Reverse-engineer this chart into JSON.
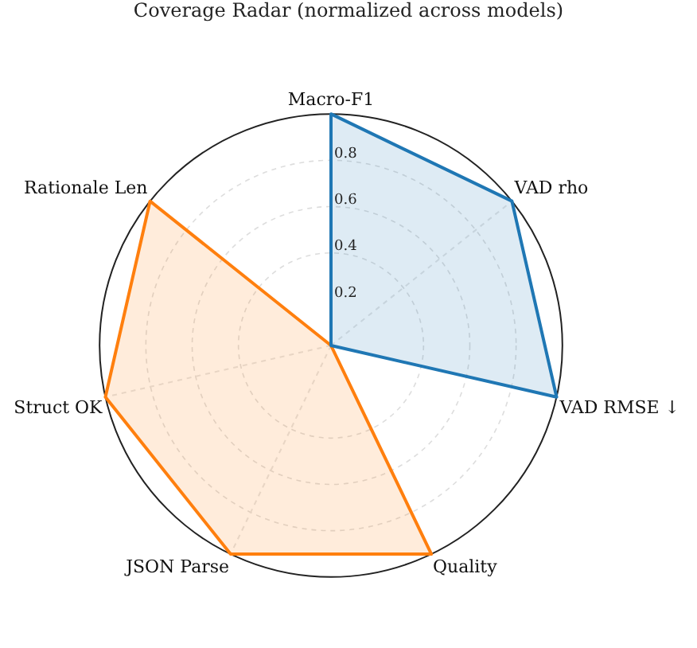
{
  "chart_data": {
    "type": "radar",
    "title": "Coverage Radar (normalized across models)",
    "categories": [
      "Macro-F1",
      "VAD rho",
      "VAD RMSE ↓",
      "Quality",
      "JSON Parse",
      "Struct OK",
      "Rationale Len"
    ],
    "series": [
      {
        "color": "#1f77b4",
        "values": [
          1,
          1,
          1,
          0,
          0,
          0,
          0
        ]
      },
      {
        "color": "#ff7f0e",
        "values": [
          0,
          0,
          0,
          1,
          1,
          1,
          1
        ]
      }
    ],
    "ylim": [
      0,
      1
    ],
    "yticks": [
      0.2,
      0.4,
      0.6,
      0.8
    ],
    "grid": true,
    "marker": "none"
  }
}
